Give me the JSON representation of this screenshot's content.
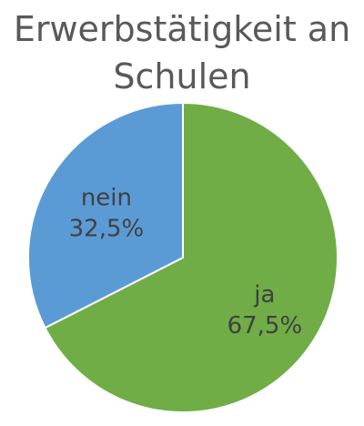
{
  "chart_data": {
    "type": "pie",
    "title": "Erwerbstätigkeit an Schulen",
    "title_lines": [
      "Erwerbstätigkeit an",
      "Schulen"
    ],
    "slices": [
      {
        "label": "ja",
        "value": 67.5,
        "value_label": "67,5%",
        "color": "#70AD47"
      },
      {
        "label": "nein",
        "value": 32.5,
        "value_label": "32,5%",
        "color": "#5B9BD5"
      }
    ],
    "start_angle_deg": 0,
    "direction": "clockwise",
    "legend": "none",
    "slice_border_color": "#FFFFFF"
  }
}
